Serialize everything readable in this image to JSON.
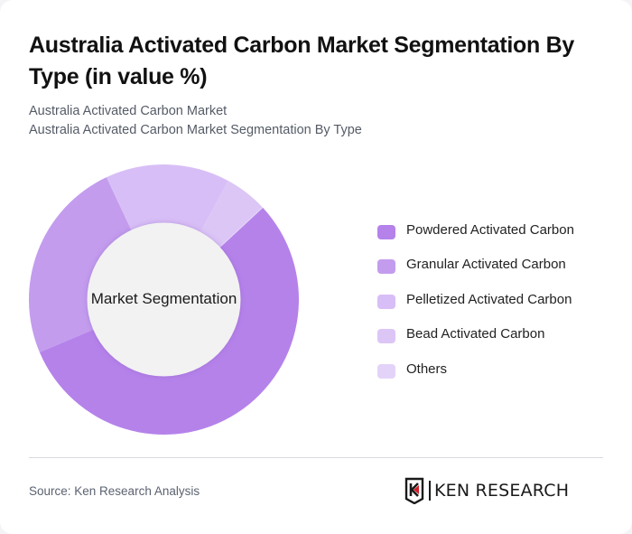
{
  "header": {
    "title": "Australia Activated Carbon Market Segmentation By Type (in value %)",
    "subtitle_line1": "Australia Activated Carbon Market",
    "subtitle_line2": "Australia Activated Carbon Market Segmentation By Type"
  },
  "chart": {
    "center_label": "Market Segmentation"
  },
  "legend": {
    "items": [
      {
        "label": "Powdered Activated Carbon",
        "color": "#b582ea"
      },
      {
        "label": "Granular Activated Carbon",
        "color": "#c39cee"
      },
      {
        "label": "Pelletized Activated Carbon",
        "color": "#d8bef6"
      },
      {
        "label": "Bead Activated Carbon",
        "color": "#dcc6f6"
      },
      {
        "label": "Others",
        "color": "#e3d3f8"
      }
    ]
  },
  "footer": {
    "source": "Source: Ken Research Analysis",
    "logo_text": "KEN RESEARCH",
    "logo_accent": "#d0202a"
  },
  "chart_data": {
    "type": "pie",
    "variant": "donut",
    "title": "Australia Activated Carbon Market Segmentation By Type (in value %)",
    "center_label": "Market Segmentation",
    "categories": [
      "Powdered Activated Carbon",
      "Granular Activated Carbon",
      "Pelletized Activated Carbon",
      "Bead Activated Carbon",
      "Others"
    ],
    "values": [
      55.5,
      24.4,
      14.9,
      5.1,
      0.1
    ],
    "colors": [
      "#b582ea",
      "#c39cee",
      "#d8bef6",
      "#dcc6f6",
      "#e3d3f8"
    ],
    "start_angle_deg": 47.2,
    "direction": "clockwise",
    "legend_position": "right",
    "data_labels": false
  }
}
